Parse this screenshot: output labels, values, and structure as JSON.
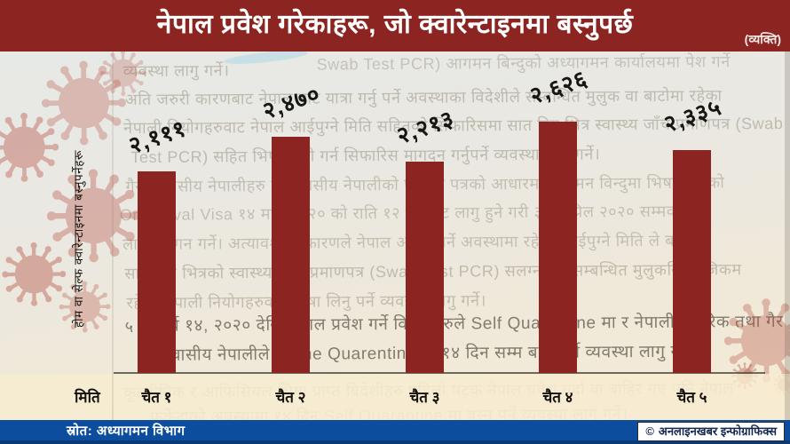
{
  "header": {
    "title": "नेपाल प्रवेश गरेकाहरू, जो क्वारेन्टाइनमा बस्नुपर्छ",
    "unit": "(व्यक्ति)"
  },
  "chart_data": {
    "type": "bar",
    "title": "नेपाल प्रवेश गरेकाहरू, जो क्वारेन्टाइनमा बस्नुपर्छ",
    "unit": "(व्यक्ति)",
    "xlabel": "मिति",
    "ylabel": "होम वा सेल्फ क्वारेन्टाइनमा बस्नुपर्नेहरू",
    "categories": [
      "चैत १",
      "चैत २",
      "चैत ३",
      "चैत ४",
      "चैत ५"
    ],
    "values": [
      2111,
      2470,
      2213,
      2626,
      2335
    ],
    "value_labels": [
      "२,१११",
      "२,४७०",
      "२,२१३",
      "२,६२६",
      "२,३३५"
    ],
    "ylim": [
      0,
      2800
    ],
    "bar_color": "#8c2522",
    "grid": false,
    "legend": null
  },
  "background": {
    "document_lines": [
      "व्यवस्था लागु गर्ने।",
      "Swab Test PCR) आगमन बिन्दुको अध्यागमन कार्यालयमा पेश गर्ने",
      "अति जरुरी कारणबाट नेपाल बाट यात्रा गर्नु पर्ने अवस्थाका विदेशीले सम्बन्धित मुलुक वा बाटोमा रहेका",
      "नेपाली नियोगहरुवाट नेपाल आईपुग्ने मिति सहितको सिफारिसमा सात दिन भित्र स्वास्थ्य जाँच प्रमाणपत्र (Swab",
      "Test PCR) सहित भिषा जारी गर्न सिफारिस मागदन गर्नुपर्ने व्यवस्था लागु गर्ने।",
      "गैर आवासीय नेपालीहरु र आवासीय नेपालीको परिचय पत्रको आधारमा आगमन विन्दुमा भिषा आएको",
      "On Arrival Visa १४ मार्च २०२० को राति १२ बजेबाट लागु हुने गरी ३० अप्रिल २०२० सम्मका",
      "लागि स्थगन गर्ने। अत्यावश्यक कारणले नेपाल आउनु पर्ने अवस्थामा रहेका आईपुग्ने मिति ले बढीमा",
      "सात दिन भित्रको स्वास्थ्य जाँच प्रमाणपत्र (Swab Test PCR) सलग्न गरी सम्बन्धित मुलुकस्थित जिकम",
      "रहेका नेपाली नियोगहरुवाट भिषा लिनु पर्ने व्यवस्था लागु गर्ने।"
    ],
    "highlight": {
      "marker": "५",
      "lines": [
        "मार्च १४, २०२० देखि नेपाल प्रवेश गर्ने विदेशीहरुले Self Quarentine मा र नेपाली नागरिक तथा गैर",
        "आवासीय नेपालीले Home Quarentine मा १४ दिन सम्म बस्नु पर्ने व्यवस्था लागु गर्ने।"
      ]
    },
    "lower_lines": [
      "कूटनीतिक र आफिसियल भिषा प्राप्त विदेशीहरु पहिलो पटक नेपाल प्रवेश गर्दा वा बाहिर गए पनि नेपाल",
      "फर्केदाको अवस्थामा १४ दिन Self Quarantine मा बस्नु पर्ने व्यवस्था लागु गर्ने।"
    ]
  },
  "footer": {
    "source": "स्रोत: अध्यागमन विभाग",
    "credit_symbol": "©",
    "credit": "अनलाइनखबर इन्फोग्राफिक्स"
  },
  "colors": {
    "title_bg": "#8c2522",
    "bar": "#8c2522",
    "footer_bg": "#0d4d9e",
    "badge_bg": "#ffffff",
    "badge_text": "#15294e",
    "virus": "#b5493d"
  }
}
